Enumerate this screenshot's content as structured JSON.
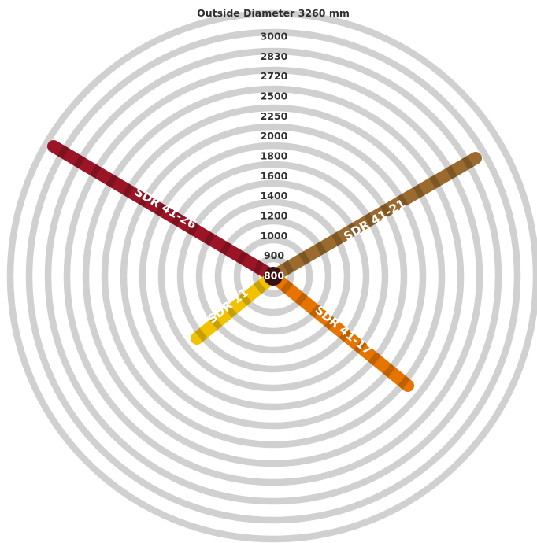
{
  "title": "Outside Diameter 3260 mm",
  "rings": [
    "3000",
    "2830",
    "2720",
    "2500",
    "2250",
    "2000",
    "1800",
    "1600",
    "1400",
    "1200",
    "1000",
    "900",
    "800"
  ],
  "arms": [
    {
      "label": "SDR 41-26",
      "color": "#9b1527",
      "direction": "upper-left"
    },
    {
      "label": "SDR 41-21",
      "color": "#9a6a2e",
      "direction": "upper-right"
    },
    {
      "label": "SDR 11",
      "color": "#f2c200",
      "direction": "lower-left"
    },
    {
      "label": "SDR 41-17",
      "color": "#e87400",
      "direction": "lower-right"
    }
  ]
}
